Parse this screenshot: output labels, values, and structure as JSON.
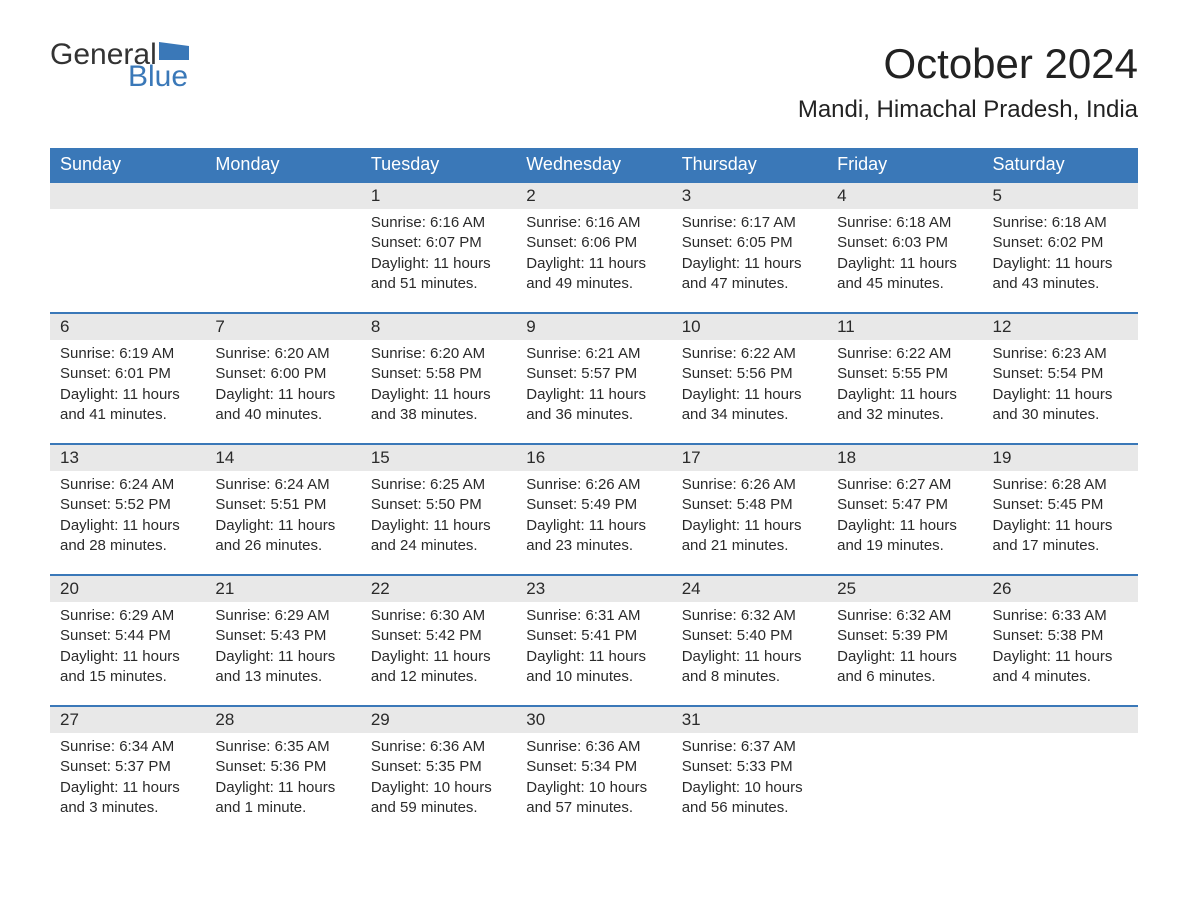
{
  "logo": {
    "text1": "General",
    "text2": "Blue"
  },
  "title": "October 2024",
  "location": "Mandi, Himachal Pradesh, India",
  "colors": {
    "header_bg": "#3a78b8",
    "header_text": "#ffffff",
    "daynum_bg": "#e8e8e8",
    "daynum_border": "#3a78b8",
    "body_text": "#2a2a2a",
    "page_bg": "#ffffff",
    "logo_dark": "#333333",
    "logo_blue": "#3a78b8"
  },
  "typography": {
    "title_fontsize": 42,
    "location_fontsize": 24,
    "header_fontsize": 18,
    "daynum_fontsize": 17,
    "cell_fontsize": 15,
    "logo_fontsize": 30
  },
  "weekdays": [
    "Sunday",
    "Monday",
    "Tuesday",
    "Wednesday",
    "Thursday",
    "Friday",
    "Saturday"
  ],
  "weeks": [
    [
      null,
      null,
      {
        "n": "1",
        "sr": "Sunrise: 6:16 AM",
        "ss": "Sunset: 6:07 PM",
        "d1": "Daylight: 11 hours",
        "d2": "and 51 minutes."
      },
      {
        "n": "2",
        "sr": "Sunrise: 6:16 AM",
        "ss": "Sunset: 6:06 PM",
        "d1": "Daylight: 11 hours",
        "d2": "and 49 minutes."
      },
      {
        "n": "3",
        "sr": "Sunrise: 6:17 AM",
        "ss": "Sunset: 6:05 PM",
        "d1": "Daylight: 11 hours",
        "d2": "and 47 minutes."
      },
      {
        "n": "4",
        "sr": "Sunrise: 6:18 AM",
        "ss": "Sunset: 6:03 PM",
        "d1": "Daylight: 11 hours",
        "d2": "and 45 minutes."
      },
      {
        "n": "5",
        "sr": "Sunrise: 6:18 AM",
        "ss": "Sunset: 6:02 PM",
        "d1": "Daylight: 11 hours",
        "d2": "and 43 minutes."
      }
    ],
    [
      {
        "n": "6",
        "sr": "Sunrise: 6:19 AM",
        "ss": "Sunset: 6:01 PM",
        "d1": "Daylight: 11 hours",
        "d2": "and 41 minutes."
      },
      {
        "n": "7",
        "sr": "Sunrise: 6:20 AM",
        "ss": "Sunset: 6:00 PM",
        "d1": "Daylight: 11 hours",
        "d2": "and 40 minutes."
      },
      {
        "n": "8",
        "sr": "Sunrise: 6:20 AM",
        "ss": "Sunset: 5:58 PM",
        "d1": "Daylight: 11 hours",
        "d2": "and 38 minutes."
      },
      {
        "n": "9",
        "sr": "Sunrise: 6:21 AM",
        "ss": "Sunset: 5:57 PM",
        "d1": "Daylight: 11 hours",
        "d2": "and 36 minutes."
      },
      {
        "n": "10",
        "sr": "Sunrise: 6:22 AM",
        "ss": "Sunset: 5:56 PM",
        "d1": "Daylight: 11 hours",
        "d2": "and 34 minutes."
      },
      {
        "n": "11",
        "sr": "Sunrise: 6:22 AM",
        "ss": "Sunset: 5:55 PM",
        "d1": "Daylight: 11 hours",
        "d2": "and 32 minutes."
      },
      {
        "n": "12",
        "sr": "Sunrise: 6:23 AM",
        "ss": "Sunset: 5:54 PM",
        "d1": "Daylight: 11 hours",
        "d2": "and 30 minutes."
      }
    ],
    [
      {
        "n": "13",
        "sr": "Sunrise: 6:24 AM",
        "ss": "Sunset: 5:52 PM",
        "d1": "Daylight: 11 hours",
        "d2": "and 28 minutes."
      },
      {
        "n": "14",
        "sr": "Sunrise: 6:24 AM",
        "ss": "Sunset: 5:51 PM",
        "d1": "Daylight: 11 hours",
        "d2": "and 26 minutes."
      },
      {
        "n": "15",
        "sr": "Sunrise: 6:25 AM",
        "ss": "Sunset: 5:50 PM",
        "d1": "Daylight: 11 hours",
        "d2": "and 24 minutes."
      },
      {
        "n": "16",
        "sr": "Sunrise: 6:26 AM",
        "ss": "Sunset: 5:49 PM",
        "d1": "Daylight: 11 hours",
        "d2": "and 23 minutes."
      },
      {
        "n": "17",
        "sr": "Sunrise: 6:26 AM",
        "ss": "Sunset: 5:48 PM",
        "d1": "Daylight: 11 hours",
        "d2": "and 21 minutes."
      },
      {
        "n": "18",
        "sr": "Sunrise: 6:27 AM",
        "ss": "Sunset: 5:47 PM",
        "d1": "Daylight: 11 hours",
        "d2": "and 19 minutes."
      },
      {
        "n": "19",
        "sr": "Sunrise: 6:28 AM",
        "ss": "Sunset: 5:45 PM",
        "d1": "Daylight: 11 hours",
        "d2": "and 17 minutes."
      }
    ],
    [
      {
        "n": "20",
        "sr": "Sunrise: 6:29 AM",
        "ss": "Sunset: 5:44 PM",
        "d1": "Daylight: 11 hours",
        "d2": "and 15 minutes."
      },
      {
        "n": "21",
        "sr": "Sunrise: 6:29 AM",
        "ss": "Sunset: 5:43 PM",
        "d1": "Daylight: 11 hours",
        "d2": "and 13 minutes."
      },
      {
        "n": "22",
        "sr": "Sunrise: 6:30 AM",
        "ss": "Sunset: 5:42 PM",
        "d1": "Daylight: 11 hours",
        "d2": "and 12 minutes."
      },
      {
        "n": "23",
        "sr": "Sunrise: 6:31 AM",
        "ss": "Sunset: 5:41 PM",
        "d1": "Daylight: 11 hours",
        "d2": "and 10 minutes."
      },
      {
        "n": "24",
        "sr": "Sunrise: 6:32 AM",
        "ss": "Sunset: 5:40 PM",
        "d1": "Daylight: 11 hours",
        "d2": "and 8 minutes."
      },
      {
        "n": "25",
        "sr": "Sunrise: 6:32 AM",
        "ss": "Sunset: 5:39 PM",
        "d1": "Daylight: 11 hours",
        "d2": "and 6 minutes."
      },
      {
        "n": "26",
        "sr": "Sunrise: 6:33 AM",
        "ss": "Sunset: 5:38 PM",
        "d1": "Daylight: 11 hours",
        "d2": "and 4 minutes."
      }
    ],
    [
      {
        "n": "27",
        "sr": "Sunrise: 6:34 AM",
        "ss": "Sunset: 5:37 PM",
        "d1": "Daylight: 11 hours",
        "d2": "and 3 minutes."
      },
      {
        "n": "28",
        "sr": "Sunrise: 6:35 AM",
        "ss": "Sunset: 5:36 PM",
        "d1": "Daylight: 11 hours",
        "d2": "and 1 minute."
      },
      {
        "n": "29",
        "sr": "Sunrise: 6:36 AM",
        "ss": "Sunset: 5:35 PM",
        "d1": "Daylight: 10 hours",
        "d2": "and 59 minutes."
      },
      {
        "n": "30",
        "sr": "Sunrise: 6:36 AM",
        "ss": "Sunset: 5:34 PM",
        "d1": "Daylight: 10 hours",
        "d2": "and 57 minutes."
      },
      {
        "n": "31",
        "sr": "Sunrise: 6:37 AM",
        "ss": "Sunset: 5:33 PM",
        "d1": "Daylight: 10 hours",
        "d2": "and 56 minutes."
      },
      null,
      null
    ]
  ]
}
